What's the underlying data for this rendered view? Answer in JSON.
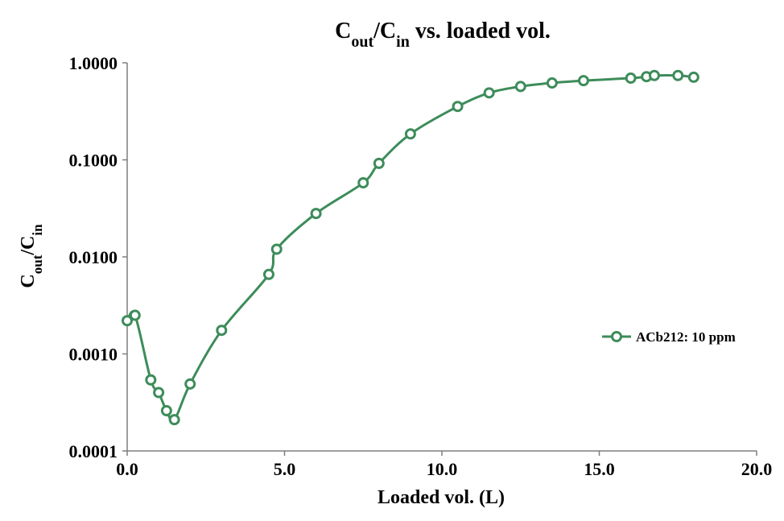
{
  "chart_data": {
    "type": "line",
    "title": {
      "main": "C",
      "sub1": "out",
      "mid": "/C",
      "sub2": "in",
      "tail": " vs. loaded vol."
    },
    "xlabel": "Loaded vol. (L)",
    "ylabel": {
      "main": "C",
      "sub1": "out",
      "mid": "/C",
      "sub2": "in"
    },
    "xlim": [
      0,
      20
    ],
    "ylim": [
      0.0001,
      1
    ],
    "yscale": "log",
    "xticks": [
      0,
      5,
      10,
      15,
      20
    ],
    "xtick_labels": [
      "0.0",
      "5.0",
      "10.0",
      "15.0",
      "20.0"
    ],
    "yticks": [
      0.0001,
      0.001,
      0.01,
      0.1,
      1
    ],
    "ytick_labels": [
      "0.0001",
      "0.0010",
      "0.0100",
      "0.1000",
      "1.0000"
    ],
    "grid": false,
    "legend_position": "right",
    "color": "#3d8c5a",
    "series": [
      {
        "name": "ACb212: 10 ppm",
        "x": [
          0.0,
          0.25,
          0.75,
          1.0,
          1.25,
          1.5,
          2.0,
          3.0,
          4.5,
          4.75,
          6.0,
          7.5,
          8.0,
          9.0,
          10.5,
          11.5,
          12.5,
          13.5,
          14.5,
          16.0,
          16.5,
          16.75,
          17.5,
          18.0
        ],
        "y": [
          0.0022,
          0.0025,
          0.00054,
          0.0004,
          0.00026,
          0.00021,
          0.00049,
          0.00175,
          0.0066,
          0.012,
          0.028,
          0.058,
          0.092,
          0.185,
          0.355,
          0.49,
          0.57,
          0.62,
          0.655,
          0.695,
          0.72,
          0.74,
          0.74,
          0.71
        ]
      }
    ]
  }
}
